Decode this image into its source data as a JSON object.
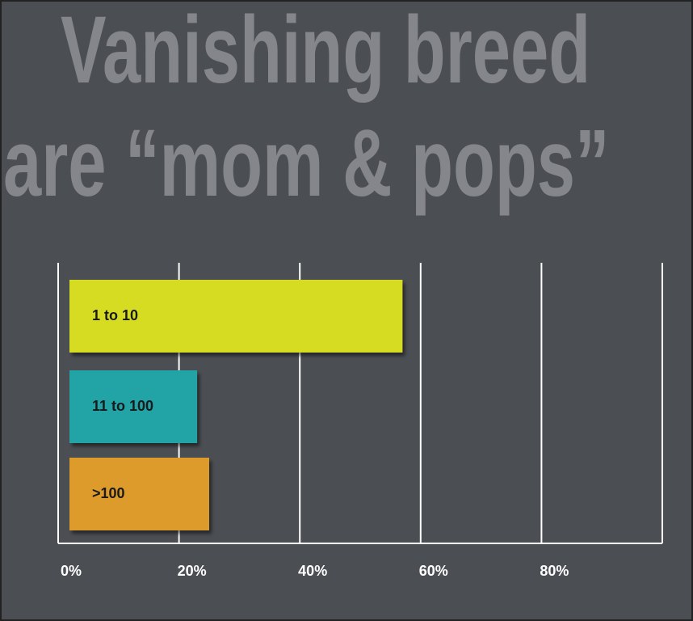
{
  "chart_data": {
    "type": "barh",
    "title": [
      "Vanishing breed",
      "are “mom & pops”"
    ],
    "categories": [
      "1 to 10",
      "11 to 100",
      ">100"
    ],
    "values": [
      57,
      23,
      25
    ],
    "colors": [
      "#d5dc23",
      "#20a3a6",
      "#dc9b2a"
    ],
    "xlim": [
      0,
      100
    ],
    "xticks": [
      {
        "value": 0,
        "label": "0%"
      },
      {
        "value": 20,
        "label": "20%"
      },
      {
        "value": 40,
        "label": "40%"
      },
      {
        "value": 60,
        "label": "60%"
      },
      {
        "value": 80,
        "label": "80%"
      }
    ],
    "grid": true
  }
}
